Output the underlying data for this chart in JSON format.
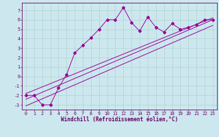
{
  "xlabel": "Windchill (Refroidissement éolien,°C)",
  "bg_color": "#cce8ee",
  "grid_color": "#aacccc",
  "line_color": "#990099",
  "spine_color": "#660066",
  "xlim": [
    -0.5,
    23.5
  ],
  "ylim": [
    -3.5,
    7.8
  ],
  "xticks": [
    0,
    1,
    2,
    3,
    4,
    5,
    6,
    7,
    8,
    9,
    10,
    11,
    12,
    13,
    14,
    15,
    16,
    17,
    18,
    19,
    20,
    21,
    22,
    23
  ],
  "yticks": [
    -3,
    -2,
    -1,
    0,
    1,
    2,
    3,
    4,
    5,
    6,
    7
  ],
  "scatter_x": [
    0,
    1,
    2,
    3,
    4,
    5,
    6,
    7,
    8,
    9,
    10,
    11,
    12,
    13,
    14,
    15,
    16,
    17,
    18,
    19,
    20,
    21,
    22,
    23
  ],
  "scatter_y": [
    -2,
    -2,
    -3,
    -3,
    -1.2,
    0.2,
    2.5,
    3.3,
    4.1,
    5.0,
    6.0,
    6.0,
    7.3,
    5.7,
    4.8,
    6.3,
    5.2,
    4.7,
    5.6,
    5.0,
    5.2,
    5.5,
    6.0,
    6.0
  ],
  "line1_x": [
    0,
    23
  ],
  "line1_y": [
    -1.8,
    6.2
  ],
  "line2_x": [
    0,
    23
  ],
  "line2_y": [
    -2.4,
    6.0
  ],
  "line3_x": [
    0,
    23
  ],
  "line3_y": [
    -3.1,
    5.4
  ],
  "tick_fontsize": 4.8,
  "xlabel_fontsize": 5.5
}
